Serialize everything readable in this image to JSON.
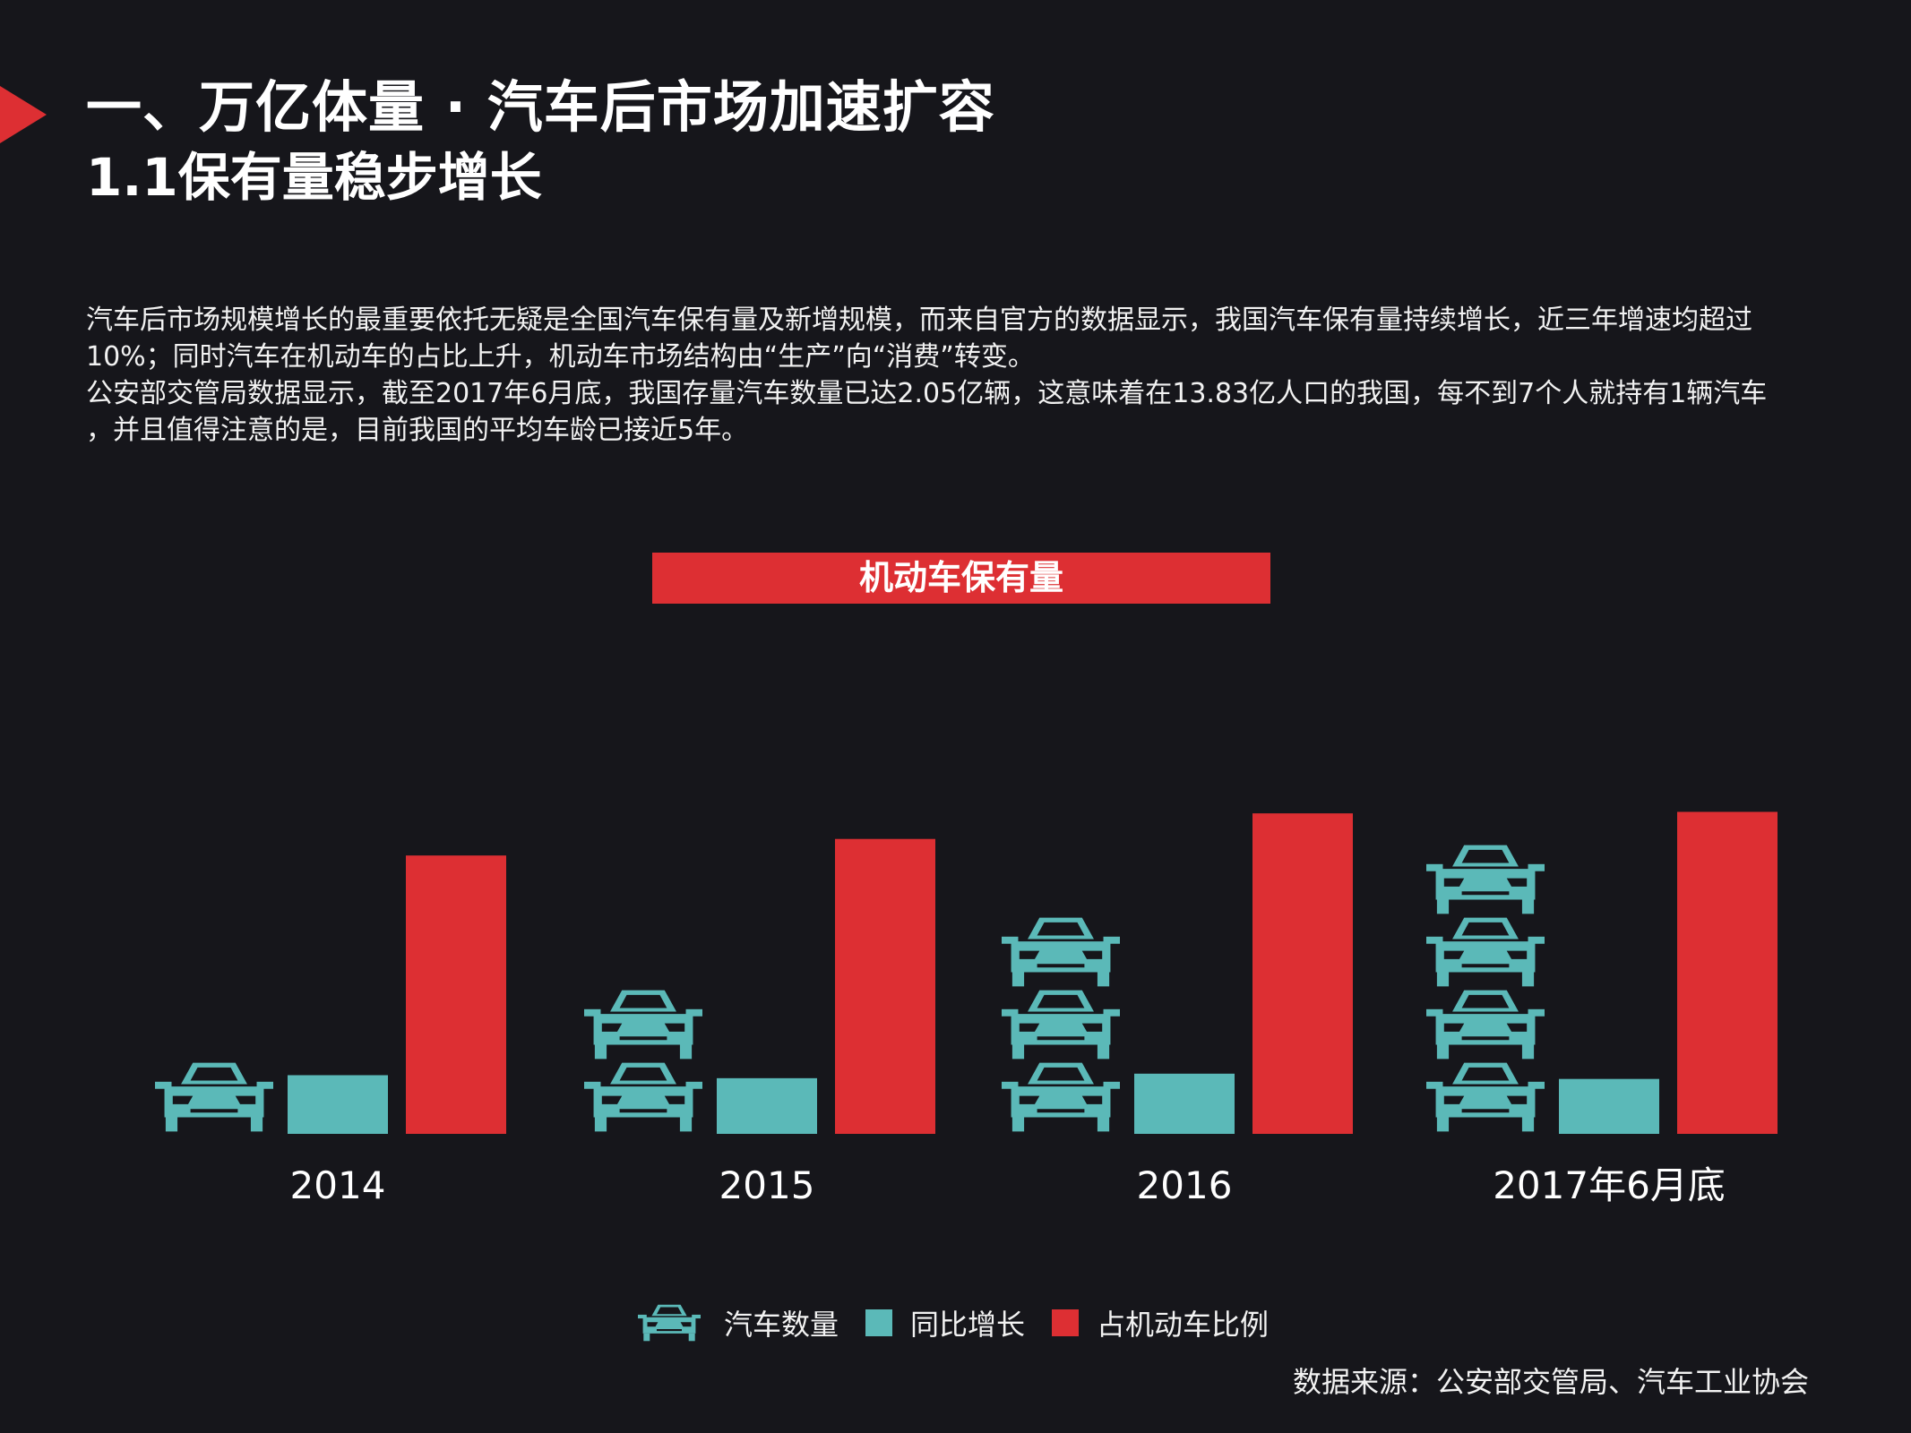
{
  "header": {
    "title": "一、万亿体量 · 汽车后市场加速扩容",
    "subtitle": "1.1保有量稳步增长"
  },
  "paragraph": {
    "lines": [
      "汽车后市场规模增长的最重要依托无疑是全国汽车保有量及新增规模，而来自官方的数据显示，我国汽车保有量持续增长，近三年增速均超过",
      "10%；同时汽车在机动车的占比上升，机动车市场结构由“生产”向“消费”转变。",
      "公安部交管局数据显示，截至2017年6月底，我国存量汽车数量已达2.05亿辆，这意味着在13.83亿人口的我国，每不到7个人就持有1辆汽车",
      "，并且值得注意的是，目前我国的平均车龄已接近5年。"
    ]
  },
  "colors": {
    "background": "#16161b",
    "accent_red": "#dd2f33",
    "teal": "#5bb9b8",
    "text": "#ffffff"
  },
  "chart_data": {
    "type": "bar",
    "title": "机动车保有量",
    "categories": [
      "2014",
      "2015",
      "2016",
      "2017年6月底"
    ],
    "series": [
      {
        "name": "汽车数量",
        "icon": "car-icon",
        "values": [
          1,
          2,
          3,
          4
        ],
        "display": "stacked car icons"
      },
      {
        "name": "同比增长",
        "color": "#5bb9b8",
        "values": [
          0.78,
          0.74,
          0.8,
          0.73
        ]
      },
      {
        "name": "占机动车比例",
        "color": "#dd2f33",
        "values": [
          3.7,
          3.92,
          4.26,
          4.28
        ]
      }
    ],
    "xlabel": "",
    "ylabel": "",
    "ylim": [
      0,
      5
    ],
    "grid": false,
    "legend": "bottom-center"
  },
  "legend": {
    "items": [
      {
        "label": "汽车数量",
        "icon": "car-icon"
      },
      {
        "label": "同比增长",
        "color": "#5bb9b8"
      },
      {
        "label": "占机动车比例",
        "color": "#dd2f33"
      }
    ]
  },
  "source": "数据来源：公安部交管局、汽车工业协会"
}
